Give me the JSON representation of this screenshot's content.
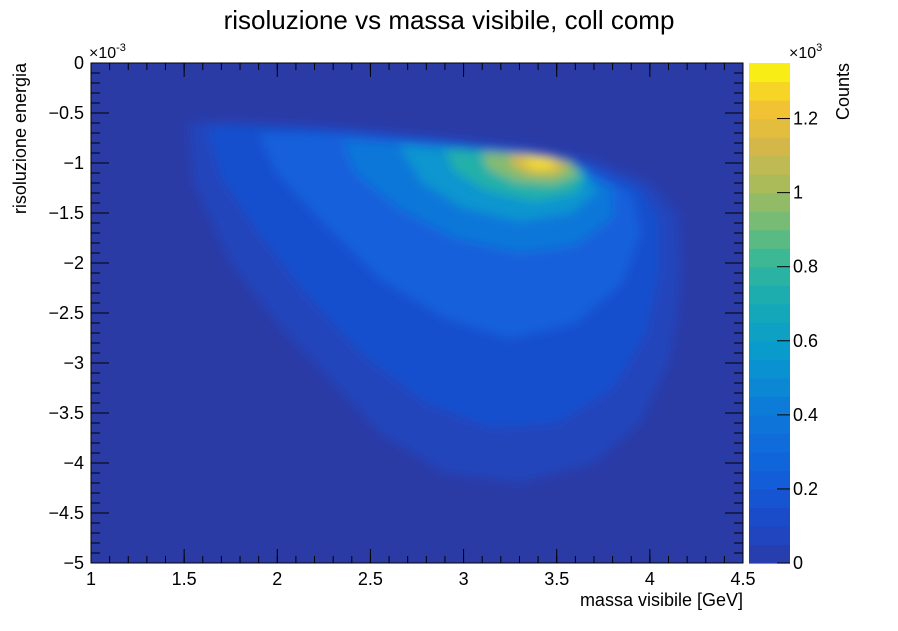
{
  "chart_data": {
    "type": "heatmap",
    "title": "risoluzione vs massa visibile,  coll comp",
    "xlabel": "massa visibile [GeV]",
    "ylabel": "risoluzione energia",
    "y_multiplier_label": "×10",
    "y_multiplier_exp": "-3",
    "z_multiplier_label": "×10",
    "z_multiplier_exp": "3",
    "zlabel": "Counts",
    "xlim": [
      1,
      4.5
    ],
    "ylim": [
      -5,
      0
    ],
    "zlim": [
      0,
      1.35
    ],
    "x_ticks": [
      "1",
      "1.5",
      "2",
      "2.5",
      "3",
      "3.5",
      "4",
      "4.5"
    ],
    "y_ticks": [
      "0",
      "−0.5",
      "−1",
      "−1.5",
      "−2",
      "−2.5",
      "−3",
      "−3.5",
      "−4",
      "−4.5",
      "−5"
    ],
    "z_ticks": [
      "0",
      "0.2",
      "0.4",
      "0.6",
      "0.8",
      "1",
      "1.2"
    ],
    "z_tick_values": [
      0,
      0.2,
      0.4,
      0.6,
      0.8,
      1.0,
      1.2
    ],
    "grid": false,
    "peak": {
      "x": 3.4,
      "y": -0.98,
      "counts": 1.35
    },
    "contours": [
      {
        "level": 0.07,
        "points": [
          [
            1.52,
            -0.6
          ],
          [
            1.75,
            -0.58
          ],
          [
            2.2,
            -0.62
          ],
          [
            2.8,
            -0.72
          ],
          [
            3.3,
            -0.83
          ],
          [
            3.7,
            -0.97
          ],
          [
            4.0,
            -1.2
          ],
          [
            4.15,
            -1.5
          ],
          [
            4.17,
            -2.0
          ],
          [
            4.15,
            -2.5
          ],
          [
            4.1,
            -3.0
          ],
          [
            3.95,
            -3.6
          ],
          [
            3.7,
            -4.0
          ],
          [
            3.3,
            -4.2
          ],
          [
            2.9,
            -4.1
          ],
          [
            2.55,
            -3.7
          ],
          [
            2.25,
            -3.1
          ],
          [
            2.0,
            -2.6
          ],
          [
            1.75,
            -2.0
          ],
          [
            1.55,
            -1.2
          ],
          [
            1.52,
            -0.6
          ]
        ]
      },
      {
        "level": 0.15,
        "points": [
          [
            1.62,
            -0.63
          ],
          [
            2.2,
            -0.66
          ],
          [
            2.8,
            -0.76
          ],
          [
            3.3,
            -0.86
          ],
          [
            3.65,
            -1.0
          ],
          [
            3.95,
            -1.25
          ],
          [
            4.05,
            -1.55
          ],
          [
            4.05,
            -2.1
          ],
          [
            3.98,
            -2.7
          ],
          [
            3.8,
            -3.25
          ],
          [
            3.5,
            -3.6
          ],
          [
            3.15,
            -3.65
          ],
          [
            2.8,
            -3.4
          ],
          [
            2.45,
            -2.9
          ],
          [
            2.15,
            -2.3
          ],
          [
            1.9,
            -1.7
          ],
          [
            1.7,
            -1.15
          ],
          [
            1.62,
            -0.63
          ]
        ]
      },
      {
        "level": 0.25,
        "points": [
          [
            1.9,
            -0.7
          ],
          [
            2.4,
            -0.72
          ],
          [
            2.9,
            -0.8
          ],
          [
            3.3,
            -0.9
          ],
          [
            3.65,
            -1.05
          ],
          [
            3.9,
            -1.3
          ],
          [
            3.95,
            -1.7
          ],
          [
            3.85,
            -2.2
          ],
          [
            3.6,
            -2.6
          ],
          [
            3.25,
            -2.75
          ],
          [
            2.9,
            -2.55
          ],
          [
            2.55,
            -2.15
          ],
          [
            2.25,
            -1.6
          ],
          [
            2.0,
            -1.1
          ],
          [
            1.9,
            -0.7
          ]
        ]
      },
      {
        "level": 0.4,
        "points": [
          [
            2.35,
            -0.78
          ],
          [
            2.8,
            -0.83
          ],
          [
            3.2,
            -0.9
          ],
          [
            3.55,
            -1.02
          ],
          [
            3.8,
            -1.25
          ],
          [
            3.8,
            -1.55
          ],
          [
            3.6,
            -1.82
          ],
          [
            3.3,
            -1.9
          ],
          [
            2.95,
            -1.75
          ],
          [
            2.65,
            -1.45
          ],
          [
            2.42,
            -1.1
          ],
          [
            2.35,
            -0.78
          ]
        ]
      },
      {
        "level": 0.55,
        "points": [
          [
            2.65,
            -0.82
          ],
          [
            3.0,
            -0.86
          ],
          [
            3.35,
            -0.92
          ],
          [
            3.62,
            -1.05
          ],
          [
            3.72,
            -1.28
          ],
          [
            3.58,
            -1.5
          ],
          [
            3.3,
            -1.58
          ],
          [
            3.0,
            -1.45
          ],
          [
            2.78,
            -1.2
          ],
          [
            2.65,
            -0.82
          ]
        ]
      },
      {
        "level": 0.75,
        "points": [
          [
            2.9,
            -0.86
          ],
          [
            3.2,
            -0.89
          ],
          [
            3.5,
            -0.95
          ],
          [
            3.66,
            -1.1
          ],
          [
            3.6,
            -1.3
          ],
          [
            3.38,
            -1.38
          ],
          [
            3.12,
            -1.27
          ],
          [
            2.95,
            -1.08
          ],
          [
            2.9,
            -0.86
          ]
        ]
      },
      {
        "level": 0.95,
        "points": [
          [
            3.1,
            -0.89
          ],
          [
            3.35,
            -0.91
          ],
          [
            3.58,
            -0.99
          ],
          [
            3.62,
            -1.12
          ],
          [
            3.48,
            -1.22
          ],
          [
            3.28,
            -1.19
          ],
          [
            3.13,
            -1.06
          ],
          [
            3.1,
            -0.89
          ]
        ]
      },
      {
        "level": 1.15,
        "points": [
          [
            3.25,
            -0.92
          ],
          [
            3.45,
            -0.94
          ],
          [
            3.56,
            -1.02
          ],
          [
            3.5,
            -1.11
          ],
          [
            3.36,
            -1.11
          ],
          [
            3.26,
            -1.02
          ],
          [
            3.25,
            -0.92
          ]
        ]
      },
      {
        "level": 1.3,
        "points": [
          [
            3.33,
            -0.95
          ],
          [
            3.46,
            -0.96
          ],
          [
            3.5,
            -1.02
          ],
          [
            3.42,
            -1.06
          ],
          [
            3.34,
            -1.02
          ],
          [
            3.33,
            -0.95
          ]
        ]
      }
    ]
  }
}
